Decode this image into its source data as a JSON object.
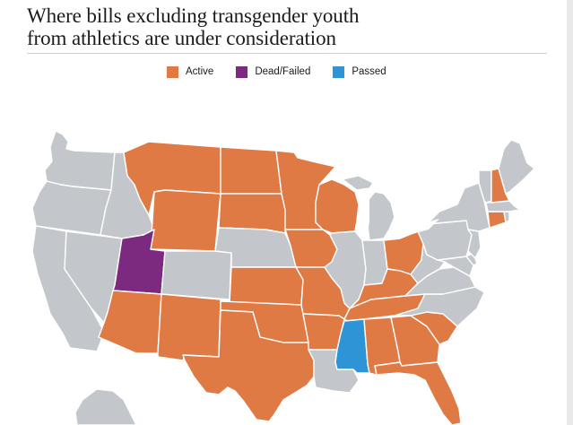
{
  "title": {
    "line1": "Where bills excluding transgender youth",
    "line2": "from athletics are under consideration"
  },
  "legend": [
    {
      "label": "Active",
      "color": "#e07a44"
    },
    {
      "label": "Dead/Failed",
      "color": "#7b2a7f"
    },
    {
      "label": "Passed",
      "color": "#2e94d6"
    }
  ],
  "colors": {
    "active": "#e07a44",
    "dead_failed": "#7b2a7f",
    "passed": "#2e94d6",
    "none": "#c3c6ca"
  },
  "states": [
    {
      "abbr": "WA",
      "status": "none"
    },
    {
      "abbr": "OR",
      "status": "none"
    },
    {
      "abbr": "CA",
      "status": "none"
    },
    {
      "abbr": "NV",
      "status": "none"
    },
    {
      "abbr": "ID",
      "status": "none"
    },
    {
      "abbr": "MT",
      "status": "active"
    },
    {
      "abbr": "WY",
      "status": "active"
    },
    {
      "abbr": "UT",
      "status": "dead_failed"
    },
    {
      "abbr": "CO",
      "status": "none"
    },
    {
      "abbr": "AZ",
      "status": "active"
    },
    {
      "abbr": "NM",
      "status": "active"
    },
    {
      "abbr": "ND",
      "status": "active"
    },
    {
      "abbr": "SD",
      "status": "active"
    },
    {
      "abbr": "NE",
      "status": "none"
    },
    {
      "abbr": "KS",
      "status": "active"
    },
    {
      "abbr": "OK",
      "status": "active"
    },
    {
      "abbr": "TX",
      "status": "active"
    },
    {
      "abbr": "MN",
      "status": "active"
    },
    {
      "abbr": "IA",
      "status": "active"
    },
    {
      "abbr": "MO",
      "status": "active"
    },
    {
      "abbr": "AR",
      "status": "active"
    },
    {
      "abbr": "LA",
      "status": "none"
    },
    {
      "abbr": "WI",
      "status": "active"
    },
    {
      "abbr": "IL",
      "status": "none"
    },
    {
      "abbr": "MI",
      "status": "none"
    },
    {
      "abbr": "IN",
      "status": "none"
    },
    {
      "abbr": "OH",
      "status": "active"
    },
    {
      "abbr": "KY",
      "status": "active"
    },
    {
      "abbr": "TN",
      "status": "active"
    },
    {
      "abbr": "MS",
      "status": "passed"
    },
    {
      "abbr": "AL",
      "status": "active"
    },
    {
      "abbr": "GA",
      "status": "active"
    },
    {
      "abbr": "FL",
      "status": "active"
    },
    {
      "abbr": "SC",
      "status": "active"
    },
    {
      "abbr": "NC",
      "status": "none"
    },
    {
      "abbr": "VA",
      "status": "none"
    },
    {
      "abbr": "WV",
      "status": "none"
    },
    {
      "abbr": "PA",
      "status": "none"
    },
    {
      "abbr": "NY",
      "status": "none"
    },
    {
      "abbr": "NH",
      "status": "active"
    },
    {
      "abbr": "CT",
      "status": "active"
    },
    {
      "abbr": "VT",
      "status": "none"
    },
    {
      "abbr": "ME",
      "status": "none"
    },
    {
      "abbr": "MA",
      "status": "none"
    },
    {
      "abbr": "NJ",
      "status": "none"
    },
    {
      "abbr": "MD",
      "status": "none"
    },
    {
      "abbr": "DE",
      "status": "none"
    },
    {
      "abbr": "RI",
      "status": "none"
    },
    {
      "abbr": "AK",
      "status": "none"
    }
  ]
}
